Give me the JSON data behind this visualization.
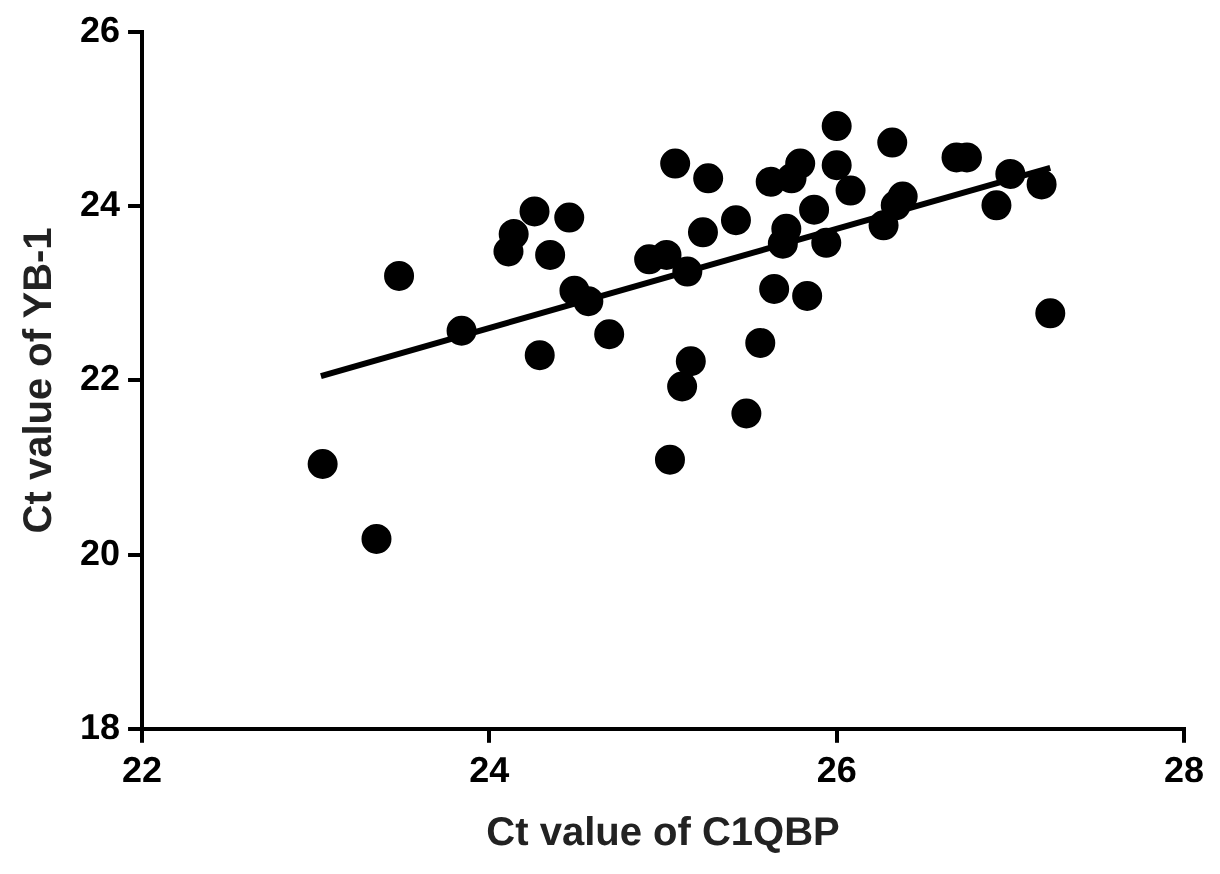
{
  "chart_data": {
    "type": "scatter",
    "xlabel": "Ct value of C1QBP",
    "ylabel": "Ct value of YB-1",
    "xlim": [
      22,
      28
    ],
    "xticks": [
      22,
      24,
      26,
      28
    ],
    "ylim": [
      18,
      26
    ],
    "yticks": [
      18,
      20,
      22,
      24,
      26
    ],
    "grid": false,
    "legend": false,
    "marker": "circle",
    "series": [
      {
        "type": "scatter",
        "color": "#000000",
        "x": [
          23.04,
          23.35,
          23.48,
          23.84,
          24.11,
          24.14,
          24.26,
          24.46,
          24.35,
          24.29,
          24.49,
          24.57,
          24.69,
          25.07,
          24.92,
          25.02,
          25.14,
          25.16,
          25.11,
          25.04,
          25.26,
          25.23,
          25.42,
          25.62,
          25.74,
          25.79,
          26.0,
          26.0,
          26.08,
          26.32,
          25.87,
          25.71,
          25.69,
          25.94,
          25.64,
          25.83,
          25.56,
          25.48,
          26.27,
          26.38,
          26.34,
          26.69,
          26.75,
          27.0,
          26.92,
          27.18,
          27.23
        ],
        "values": [
          21.04,
          20.18,
          23.2,
          22.57,
          23.48,
          23.68,
          23.94,
          23.87,
          23.44,
          22.29,
          23.03,
          22.91,
          22.53,
          24.49,
          23.39,
          23.44,
          23.25,
          22.22,
          21.93,
          21.09,
          24.32,
          23.7,
          23.84,
          24.28,
          24.32,
          24.49,
          24.92,
          24.47,
          24.18,
          24.73,
          23.96,
          23.74,
          23.57,
          23.58,
          23.05,
          22.97,
          22.43,
          21.62,
          23.78,
          24.11,
          24.01,
          24.56,
          24.56,
          24.37,
          24.01,
          24.25,
          22.77
        ]
      },
      {
        "type": "line",
        "color": "#000000",
        "marker": "none",
        "line_style": "solid",
        "x": [
          23.03,
          27.23
        ],
        "values": [
          22.05,
          24.44
        ]
      }
    ]
  }
}
